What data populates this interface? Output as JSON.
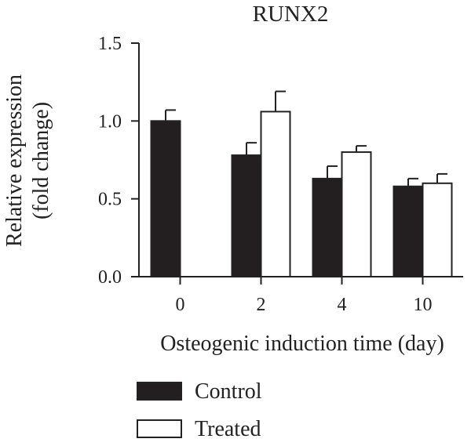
{
  "chart_data": {
    "type": "bar",
    "title": "RUNX2",
    "xlabel": "Osteogenic induction time (day)",
    "ylabel_line1": "Relative expression",
    "ylabel_line2": "(fold change)",
    "categories": [
      "0",
      "2",
      "4",
      "10"
    ],
    "yticks": [
      "0.0",
      "0.5",
      "1.0",
      "1.5"
    ],
    "ylim": [
      0,
      1.5
    ],
    "grid": false,
    "legend_position": "bottom-left",
    "series": [
      {
        "name": "Control",
        "color": "#231f20",
        "values": [
          1.0,
          0.78,
          0.63,
          0.58
        ],
        "errors": [
          0.07,
          0.08,
          0.08,
          0.05
        ]
      },
      {
        "name": "Treated",
        "color": "#ffffff",
        "values": [
          null,
          1.06,
          0.8,
          0.6
        ],
        "errors": [
          null,
          0.13,
          0.04,
          0.06
        ]
      }
    ]
  }
}
